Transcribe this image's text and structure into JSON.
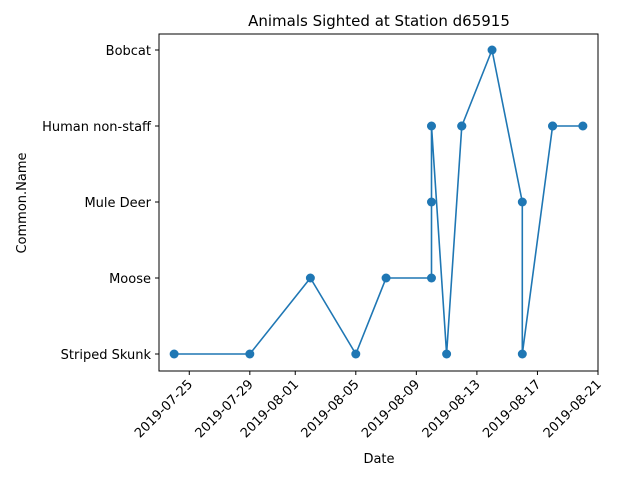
{
  "chart_data": {
    "type": "line",
    "title": "Animals Sighted at Station d65915",
    "xlabel": "Date",
    "ylabel": "Common.Name",
    "y_categories": [
      "Striped Skunk",
      "Moose",
      "Mule Deer",
      "Human non-staff",
      "Bobcat"
    ],
    "x_ticks": [
      "2019-07-25",
      "2019-07-29",
      "2019-08-01",
      "2019-08-05",
      "2019-08-09",
      "2019-08-13",
      "2019-08-17",
      "2019-08-21"
    ],
    "xlim": [
      "2019-07-23",
      "2019-08-21"
    ],
    "grid": false,
    "series": [
      {
        "color": "#1f77b4",
        "marker": "circle",
        "points": [
          {
            "x": "2019-07-24",
            "y": "Striped Skunk"
          },
          {
            "x": "2019-07-29",
            "y": "Striped Skunk"
          },
          {
            "x": "2019-08-02",
            "y": "Moose"
          },
          {
            "x": "2019-08-05",
            "y": "Striped Skunk"
          },
          {
            "x": "2019-08-07",
            "y": "Moose"
          },
          {
            "x": "2019-08-10",
            "y": "Moose"
          },
          {
            "x": "2019-08-10",
            "y": "Mule Deer"
          },
          {
            "x": "2019-08-10",
            "y": "Human non-staff"
          },
          {
            "x": "2019-08-11",
            "y": "Striped Skunk"
          },
          {
            "x": "2019-08-12",
            "y": "Human non-staff"
          },
          {
            "x": "2019-08-12",
            "y": "Human non-staff"
          },
          {
            "x": "2019-08-14",
            "y": "Bobcat"
          },
          {
            "x": "2019-08-16",
            "y": "Mule Deer"
          },
          {
            "x": "2019-08-16",
            "y": "Striped Skunk"
          },
          {
            "x": "2019-08-18",
            "y": "Human non-staff"
          },
          {
            "x": "2019-08-18",
            "y": "Human non-staff"
          },
          {
            "x": "2019-08-20",
            "y": "Human non-staff"
          }
        ]
      }
    ]
  }
}
